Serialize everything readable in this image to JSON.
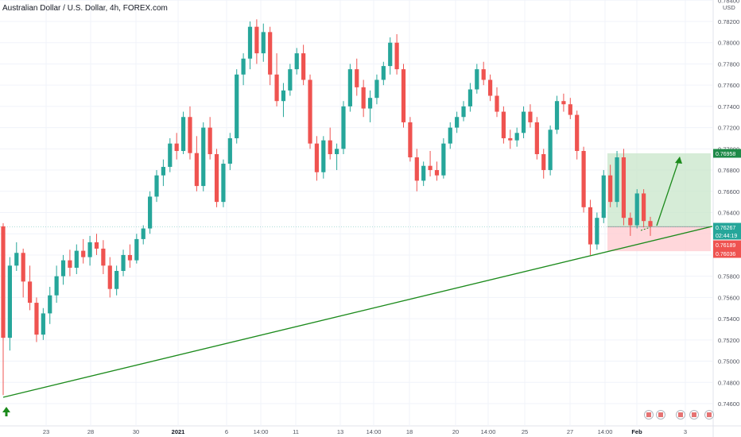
{
  "header": {
    "title": "Australian Dollar / U.S. Dollar, 4h, FOREX.com"
  },
  "axis": {
    "currency_label": "USD"
  },
  "chart_data": {
    "type": "candlestick",
    "title": "Australian Dollar / U.S. Dollar, 4h, FOREX.com",
    "ylabel": "USD",
    "ylim": [
      0.745,
      0.7845
    ],
    "y_ticks": [
      0.746,
      0.748,
      0.75,
      0.752,
      0.754,
      0.756,
      0.758,
      0.76,
      0.762,
      0.764,
      0.766,
      0.768,
      0.77,
      0.772,
      0.774,
      0.776,
      0.778,
      0.78,
      0.782,
      0.784
    ],
    "y_tick_labels": [
      "0.74600",
      "0.74800",
      "0.75000",
      "0.75200",
      "0.75400",
      "0.75600",
      "0.75800",
      "0.76000",
      "0.76200",
      "0.76400",
      "0.76600",
      "0.76800",
      "0.77000",
      "0.77200",
      "0.77400",
      "0.77600",
      "0.77800",
      "0.78000",
      "0.78200",
      "0.78400"
    ],
    "x_tick_labels": [
      "23",
      "28",
      "30",
      "2021",
      "6",
      "14:00",
      "11",
      "13",
      "14:00",
      "18",
      "20",
      "14:00",
      "25",
      "27",
      "14:00",
      "Feb",
      "3"
    ],
    "bold_x_labels": [
      "2021",
      "Feb"
    ],
    "colors": {
      "up": "#26a69a",
      "down": "#ef5350",
      "trendline": "#1b8a1b",
      "target_zone": "#c8e6c9",
      "stop_zone": "#ffcdd2"
    },
    "trendline": {
      "from": [
        0.7466
      ],
      "to": [
        0.7627
      ]
    },
    "position": {
      "entry": 0.76267,
      "target": 0.76958,
      "stop": 0.76036
    },
    "price_badges": [
      {
        "label": "0.76958",
        "color": "#1e8a48"
      },
      {
        "label": "0.76267",
        "color": "#26a69a"
      },
      {
        "label": "02:44:19",
        "color": "#26a69a"
      },
      {
        "label": "0.76189",
        "color": "#ef5350"
      },
      {
        "label": "0.76036",
        "color": "#ef5350"
      }
    ],
    "candles": [
      [
        0.7627,
        0.763,
        0.7468,
        0.7522
      ],
      [
        0.7522,
        0.7598,
        0.751,
        0.759
      ],
      [
        0.759,
        0.7612,
        0.7585,
        0.7602
      ],
      [
        0.7602,
        0.7606,
        0.756,
        0.7575
      ],
      [
        0.7575,
        0.759,
        0.7548,
        0.7555
      ],
      [
        0.7555,
        0.756,
        0.7518,
        0.7525
      ],
      [
        0.7525,
        0.755,
        0.752,
        0.7545
      ],
      [
        0.7545,
        0.757,
        0.7535,
        0.7562
      ],
      [
        0.7562,
        0.759,
        0.7555,
        0.758
      ],
      [
        0.758,
        0.76,
        0.7572,
        0.7595
      ],
      [
        0.7595,
        0.7605,
        0.758,
        0.7588
      ],
      [
        0.7588,
        0.761,
        0.7582,
        0.7604
      ],
      [
        0.7604,
        0.7615,
        0.7592,
        0.7598
      ],
      [
        0.7598,
        0.7618,
        0.759,
        0.7612
      ],
      [
        0.7612,
        0.762,
        0.76,
        0.7606
      ],
      [
        0.7606,
        0.7614,
        0.7582,
        0.759
      ],
      [
        0.759,
        0.7598,
        0.756,
        0.7568
      ],
      [
        0.7568,
        0.759,
        0.7562,
        0.7585
      ],
      [
        0.7585,
        0.7605,
        0.758,
        0.76
      ],
      [
        0.76,
        0.761,
        0.7588,
        0.7595
      ],
      [
        0.7595,
        0.762,
        0.7592,
        0.7615
      ],
      [
        0.7615,
        0.7628,
        0.761,
        0.7625
      ],
      [
        0.7625,
        0.766,
        0.762,
        0.7655
      ],
      [
        0.7655,
        0.768,
        0.765,
        0.7675
      ],
      [
        0.7675,
        0.769,
        0.7665,
        0.7683
      ],
      [
        0.7683,
        0.771,
        0.7678,
        0.7705
      ],
      [
        0.7705,
        0.7715,
        0.769,
        0.7698
      ],
      [
        0.7698,
        0.7735,
        0.7695,
        0.773
      ],
      [
        0.773,
        0.774,
        0.769,
        0.7696
      ],
      [
        0.7696,
        0.7712,
        0.766,
        0.7665
      ],
      [
        0.7665,
        0.7725,
        0.766,
        0.772
      ],
      [
        0.772,
        0.773,
        0.769,
        0.7695
      ],
      [
        0.7695,
        0.77,
        0.7645,
        0.765
      ],
      [
        0.765,
        0.769,
        0.7645,
        0.7686
      ],
      [
        0.7686,
        0.7715,
        0.768,
        0.771
      ],
      [
        0.771,
        0.7775,
        0.7705,
        0.777
      ],
      [
        0.777,
        0.779,
        0.776,
        0.7785
      ],
      [
        0.7785,
        0.782,
        0.7775,
        0.7815
      ],
      [
        0.7815,
        0.7822,
        0.778,
        0.779
      ],
      [
        0.779,
        0.7818,
        0.7782,
        0.781
      ],
      [
        0.781,
        0.7815,
        0.776,
        0.777
      ],
      [
        0.777,
        0.779,
        0.774,
        0.7745
      ],
      [
        0.7745,
        0.7762,
        0.773,
        0.7755
      ],
      [
        0.7755,
        0.778,
        0.775,
        0.7775
      ],
      [
        0.7775,
        0.7795,
        0.777,
        0.779
      ],
      [
        0.779,
        0.7798,
        0.776,
        0.7765
      ],
      [
        0.7765,
        0.777,
        0.77,
        0.7705
      ],
      [
        0.7705,
        0.7712,
        0.767,
        0.7678
      ],
      [
        0.7678,
        0.7712,
        0.7672,
        0.7708
      ],
      [
        0.7708,
        0.772,
        0.769,
        0.7695
      ],
      [
        0.7695,
        0.7705,
        0.768,
        0.77
      ],
      [
        0.77,
        0.7745,
        0.7695,
        0.774
      ],
      [
        0.774,
        0.778,
        0.7735,
        0.7775
      ],
      [
        0.7775,
        0.7785,
        0.775,
        0.7758
      ],
      [
        0.7758,
        0.7765,
        0.773,
        0.7738
      ],
      [
        0.7738,
        0.7755,
        0.7725,
        0.7748
      ],
      [
        0.7748,
        0.777,
        0.7742,
        0.7765
      ],
      [
        0.7765,
        0.7782,
        0.776,
        0.7778
      ],
      [
        0.7778,
        0.7805,
        0.777,
        0.78
      ],
      [
        0.78,
        0.7808,
        0.777,
        0.7775
      ],
      [
        0.7775,
        0.778,
        0.772,
        0.7725
      ],
      [
        0.7725,
        0.773,
        0.7688,
        0.7692
      ],
      [
        0.7692,
        0.77,
        0.766,
        0.767
      ],
      [
        0.767,
        0.7688,
        0.7665,
        0.7684
      ],
      [
        0.7684,
        0.7698,
        0.7674,
        0.768
      ],
      [
        0.768,
        0.7688,
        0.767,
        0.7675
      ],
      [
        0.7675,
        0.771,
        0.7672,
        0.7705
      ],
      [
        0.7705,
        0.7725,
        0.77,
        0.772
      ],
      [
        0.772,
        0.7735,
        0.7715,
        0.773
      ],
      [
        0.773,
        0.7745,
        0.7726,
        0.774
      ],
      [
        0.774,
        0.7762,
        0.7735,
        0.7756
      ],
      [
        0.7756,
        0.778,
        0.7752,
        0.7775
      ],
      [
        0.7775,
        0.7782,
        0.776,
        0.7765
      ],
      [
        0.7765,
        0.777,
        0.7745,
        0.775
      ],
      [
        0.775,
        0.7758,
        0.773,
        0.7735
      ],
      [
        0.7735,
        0.774,
        0.7705,
        0.771
      ],
      [
        0.771,
        0.7718,
        0.77,
        0.7708
      ],
      [
        0.7708,
        0.772,
        0.7702,
        0.7715
      ],
      [
        0.7715,
        0.774,
        0.771,
        0.7735
      ],
      [
        0.7735,
        0.7742,
        0.772,
        0.7725
      ],
      [
        0.7725,
        0.773,
        0.769,
        0.7695
      ],
      [
        0.7695,
        0.77,
        0.7672,
        0.768
      ],
      [
        0.768,
        0.7722,
        0.7675,
        0.7718
      ],
      [
        0.7718,
        0.775,
        0.7714,
        0.7745
      ],
      [
        0.7745,
        0.7752,
        0.7735,
        0.7742
      ],
      [
        0.7742,
        0.7748,
        0.7728,
        0.7732
      ],
      [
        0.7732,
        0.7736,
        0.769,
        0.7698
      ],
      [
        0.7698,
        0.7702,
        0.764,
        0.7645
      ],
      [
        0.7645,
        0.7652,
        0.76,
        0.761
      ],
      [
        0.761,
        0.764,
        0.7605,
        0.7635
      ],
      [
        0.7635,
        0.768,
        0.763,
        0.7675
      ],
      [
        0.7675,
        0.7685,
        0.7645,
        0.765
      ],
      [
        0.765,
        0.7698,
        0.7645,
        0.7692
      ],
      [
        0.7692,
        0.77,
        0.7628,
        0.7635
      ],
      [
        0.7635,
        0.764,
        0.7618,
        0.7628
      ],
      [
        0.7628,
        0.7662,
        0.7625,
        0.7658
      ],
      [
        0.7658,
        0.7662,
        0.7626,
        0.7632
      ],
      [
        0.7632,
        0.7636,
        0.7618,
        0.7627
      ]
    ]
  }
}
